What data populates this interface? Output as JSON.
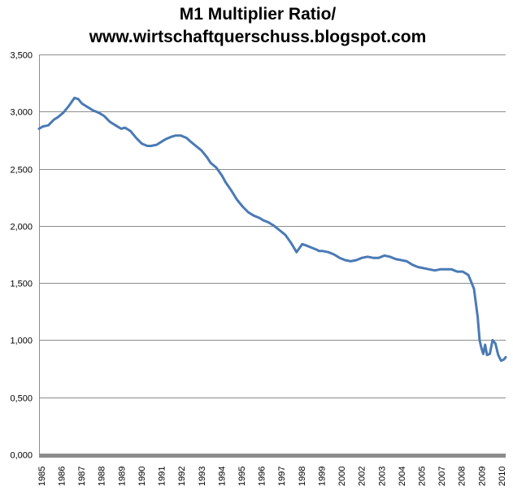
{
  "chart_data": {
    "type": "line",
    "title_lines": [
      "M1 Multiplier Ratio/",
      "www.wirtschaftquerschuss.blogspot.com"
    ],
    "xlabel": "",
    "ylabel": "",
    "ylim": [
      0,
      3.5
    ],
    "xlim": [
      1985,
      2010
    ],
    "y_ticks": [
      {
        "value": 0,
        "label": "0,000"
      },
      {
        "value": 0.5,
        "label": "0,500"
      },
      {
        "value": 1,
        "label": "1,000"
      },
      {
        "value": 1.5,
        "label": "1,500"
      },
      {
        "value": 2,
        "label": "2,000"
      },
      {
        "value": 2.5,
        "label": "2,500"
      },
      {
        "value": 3,
        "label": "3,000"
      },
      {
        "value": 3.5,
        "label": "3,500"
      }
    ],
    "x_tick_labels": [
      "1985",
      "1986",
      "1987",
      "1988",
      "1989",
      "1990",
      "1991",
      "1992",
      "1993",
      "1994",
      "1995",
      "1996",
      "1997",
      "1998",
      "1999",
      "2000",
      "2002",
      "2003",
      "2004",
      "2005",
      "2007",
      "2008",
      "2009",
      "2010"
    ],
    "grid": true,
    "legend": "none",
    "series": [
      {
        "name": "M1 Multiplier",
        "color": "#4a7ab5",
        "x": [
          1985.0,
          1985.2,
          1985.5,
          1985.8,
          1986.0,
          1986.3,
          1986.6,
          1986.9,
          1987.1,
          1987.3,
          1987.6,
          1987.9,
          1988.2,
          1988.5,
          1988.8,
          1989.1,
          1989.4,
          1989.6,
          1989.9,
          1990.2,
          1990.5,
          1990.8,
          1991.0,
          1991.3,
          1991.6,
          1991.8,
          1992.1,
          1992.3,
          1992.6,
          1992.9,
          1993.1,
          1993.4,
          1993.7,
          1994.0,
          1994.2,
          1994.5,
          1994.8,
          1995.0,
          1995.3,
          1995.6,
          1995.9,
          1996.2,
          1996.5,
          1996.8,
          1997.0,
          1997.3,
          1997.6,
          1997.9,
          1998.2,
          1998.5,
          1998.8,
          1999.1,
          1999.3,
          1999.6,
          1999.9,
          2000.0,
          2000.2,
          2000.5,
          2000.8,
          2001.1,
          2001.4,
          2001.7,
          2002.0,
          2002.3,
          2002.6,
          2002.9,
          2003.2,
          2003.5,
          2003.8,
          2004.1,
          2004.4,
          2004.7,
          2005.0,
          2005.3,
          2005.6,
          2005.9,
          2006.2,
          2006.5,
          2006.8,
          2007.1,
          2007.4,
          2007.7,
          2008.0,
          2008.3,
          2008.5,
          2008.6,
          2008.7,
          2008.8,
          2008.9,
          2009.0,
          2009.15,
          2009.3,
          2009.45,
          2009.6,
          2009.75,
          2009.9,
          2010.0
        ],
        "y": [
          2.85,
          2.87,
          2.88,
          2.93,
          2.95,
          2.99,
          3.05,
          3.12,
          3.11,
          3.07,
          3.04,
          3.01,
          2.99,
          2.96,
          2.91,
          2.88,
          2.85,
          2.86,
          2.83,
          2.77,
          2.72,
          2.7,
          2.7,
          2.71,
          2.74,
          2.76,
          2.78,
          2.79,
          2.79,
          2.77,
          2.74,
          2.7,
          2.66,
          2.6,
          2.55,
          2.51,
          2.44,
          2.38,
          2.31,
          2.23,
          2.17,
          2.12,
          2.09,
          2.07,
          2.05,
          2.03,
          2.0,
          1.96,
          1.92,
          1.85,
          1.77,
          1.84,
          1.83,
          1.81,
          1.79,
          1.78,
          1.78,
          1.77,
          1.75,
          1.72,
          1.7,
          1.69,
          1.7,
          1.72,
          1.73,
          1.72,
          1.72,
          1.74,
          1.73,
          1.71,
          1.7,
          1.69,
          1.66,
          1.64,
          1.63,
          1.62,
          1.61,
          1.62,
          1.62,
          1.62,
          1.6,
          1.6,
          1.57,
          1.45,
          1.2,
          1.0,
          0.93,
          0.88,
          0.96,
          0.87,
          0.88,
          1.0,
          0.97,
          0.87,
          0.82,
          0.83,
          0.85
        ]
      }
    ]
  }
}
